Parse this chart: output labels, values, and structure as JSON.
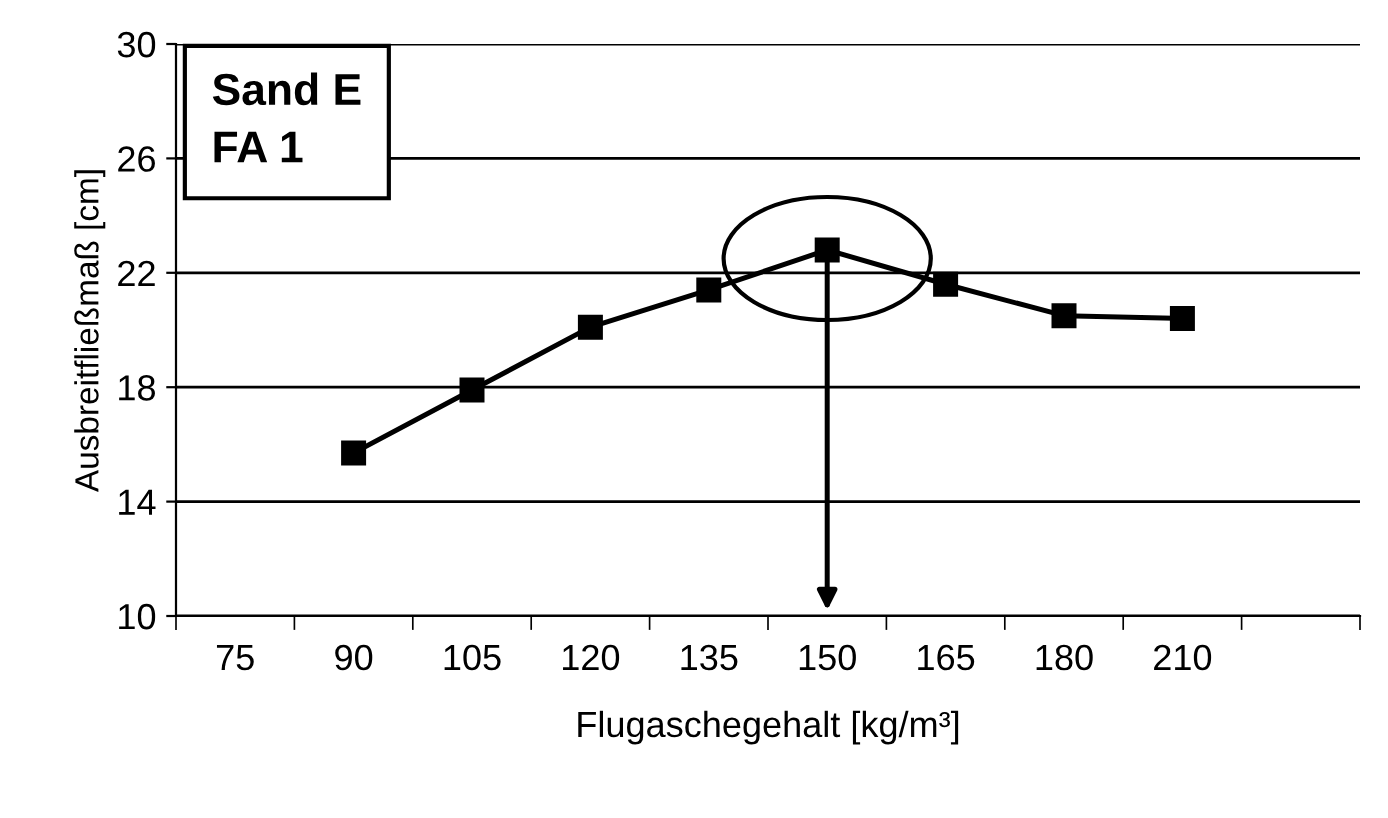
{
  "chart_data": {
    "type": "line",
    "xlabel": "Flugaschegehalt [kg/m³]",
    "ylabel": "Ausbreitfließmaß [cm]",
    "categories": [
      "75",
      "90",
      "105",
      "120",
      "135",
      "150",
      "165",
      "180",
      "210",
      null
    ],
    "series": [
      {
        "color": "#000000",
        "values": [
          null,
          15.7,
          17.9,
          20.1,
          21.4,
          22.8,
          21.6,
          20.5,
          20.4,
          null
        ]
      }
    ],
    "ylim": [
      10,
      30
    ],
    "yticks": [
      10,
      14,
      18,
      22,
      26,
      30
    ],
    "grid": "y",
    "marker": "square",
    "line_style": "solid",
    "legend": false,
    "annotations": [
      "Sand E\nFA 1"
    ]
  }
}
